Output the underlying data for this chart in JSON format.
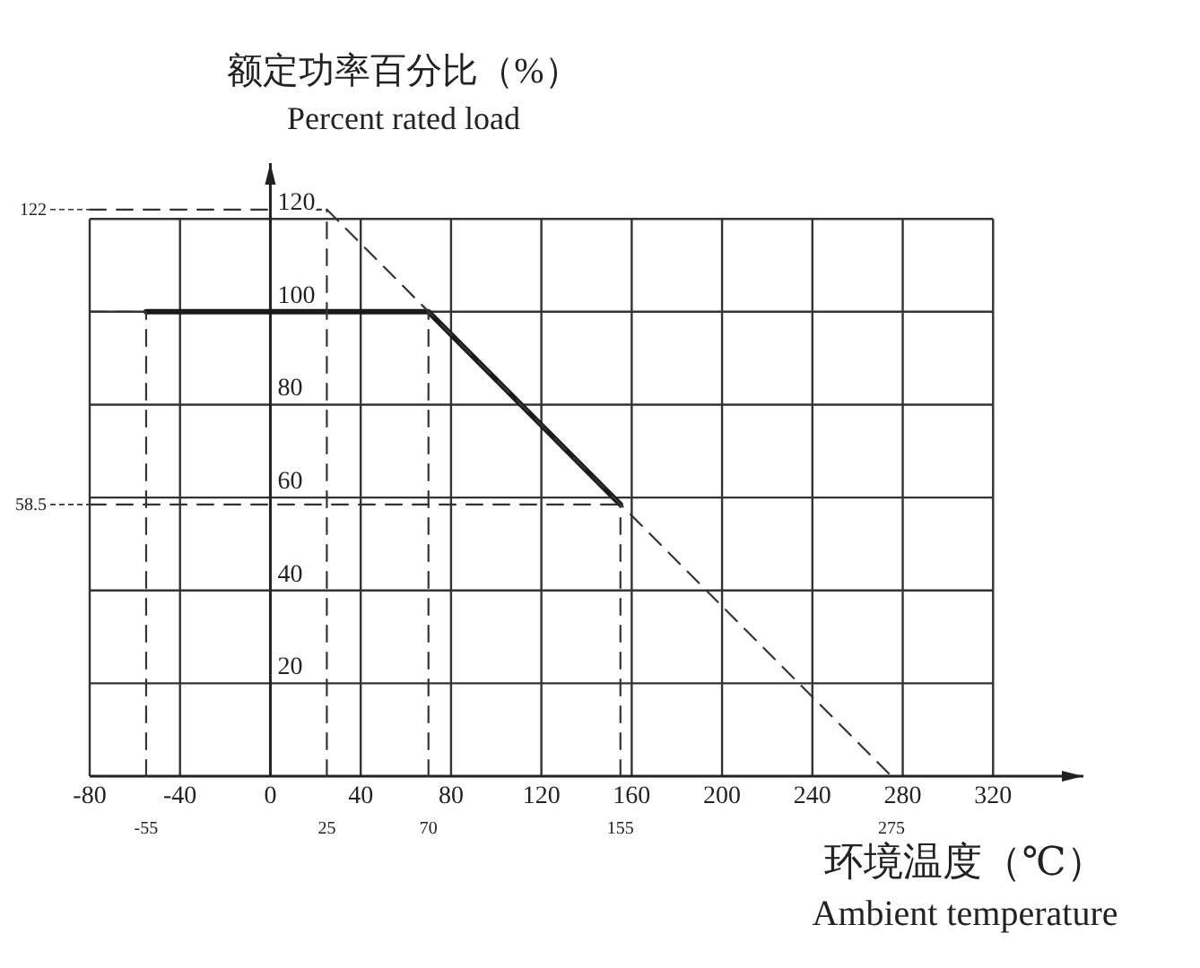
{
  "chart_data": {
    "type": "line",
    "xlabel": "环境温度（℃）\nAmbient temperature",
    "ylabel": "额定功率百分比（%）\nPercent rated load",
    "xlim": [
      -80,
      360
    ],
    "ylim": [
      0,
      132
    ],
    "xticks": [
      -80,
      -40,
      0,
      40,
      80,
      120,
      160,
      200,
      240,
      280,
      320
    ],
    "yticks": [
      20,
      40,
      60,
      80,
      100,
      120
    ],
    "grid": true,
    "marker": "none",
    "series": [
      {
        "color": "#1a1a1a",
        "line_style": "solid",
        "x": [
          -55,
          70,
          155
        ],
        "values": [
          100,
          100,
          58.5
        ]
      },
      {
        "color": "#333333",
        "line_style": "dashed",
        "x": [
          25,
          275
        ],
        "values": [
          122,
          0
        ]
      },
      {
        "color": "#333333",
        "line_style": "dashed",
        "x": [
          -55,
          -55,
          null,
          25,
          25,
          null,
          70,
          70,
          null,
          155,
          155,
          null,
          -80,
          25,
          null,
          -80,
          155,
          null,
          -80,
          -55
        ],
        "values": [
          0,
          100,
          null,
          0,
          122,
          null,
          0,
          100,
          null,
          0,
          58.5,
          null,
          122,
          122,
          null,
          58.5,
          58.5,
          null,
          100,
          100
        ]
      }
    ],
    "annotations": [
      {
        "text": "-55",
        "x": -55,
        "y": 0
      },
      {
        "text": "25",
        "x": 25,
        "y": 0
      },
      {
        "text": "70",
        "x": 70,
        "y": 0
      },
      {
        "text": "155",
        "x": 155,
        "y": 0
      },
      {
        "text": "275",
        "x": 275,
        "y": 0
      },
      {
        "text": "122",
        "x": -80,
        "y": 122
      },
      {
        "text": "58.5",
        "x": -80,
        "y": 58.5
      }
    ]
  }
}
